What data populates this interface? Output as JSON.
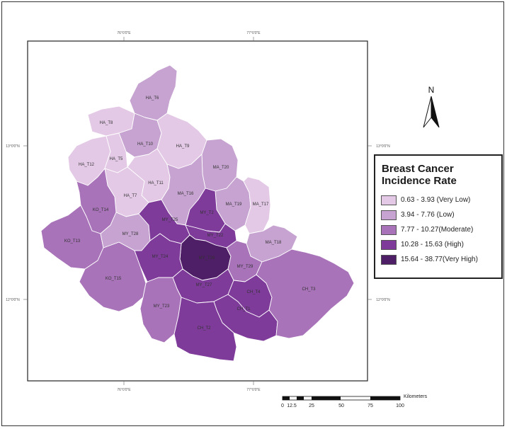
{
  "legend": {
    "title_line1": "Breast Cancer",
    "title_line2": "Incidence Rate",
    "classes": [
      {
        "label": "0.63 - 3.93 (Very Low)",
        "color": "#e3c9e6"
      },
      {
        "label": "3.94 - 7.76 (Low)",
        "color": "#c6a3d0"
      },
      {
        "label": "7.77 - 10.27(Moderate)",
        "color": "#a873b9"
      },
      {
        "label": "10.28 - 15.63 (High)",
        "color": "#7e3b9a"
      },
      {
        "label": "15.64 - 38.77(Very High)",
        "color": "#4e1e66"
      }
    ]
  },
  "north_arrow": {
    "label": "N"
  },
  "scale_bar": {
    "unit": "Kilometers",
    "ticks": [
      "0",
      "12.5",
      "25",
      "50",
      "75",
      "100"
    ]
  },
  "graticule": {
    "top": [
      "76°0'0\"E",
      "77°0'0\"E"
    ],
    "bottom": [
      "76°0'0\"E",
      "77°0'0\"E"
    ],
    "left": [
      "13°0'0\"N",
      "12°0'0\"N"
    ],
    "right": [
      "13°0'0\"N",
      "12°0'0\"N"
    ]
  },
  "map": {
    "regions": [
      {
        "label": "HA_T6",
        "class": 1
      },
      {
        "label": "HA_T8",
        "class": 0
      },
      {
        "label": "HA_T10",
        "class": 1
      },
      {
        "label": "HA_T9",
        "class": 0
      },
      {
        "label": "HA_T12",
        "class": 0
      },
      {
        "label": "HA_T5",
        "class": 0
      },
      {
        "label": "HA_T11",
        "class": 0
      },
      {
        "label": "HA_T7",
        "class": 0
      },
      {
        "label": "MA_T20",
        "class": 1
      },
      {
        "label": "MA_T16",
        "class": 1
      },
      {
        "label": "MA_T19",
        "class": 1
      },
      {
        "label": "MA_T17",
        "class": 0
      },
      {
        "label": "MA_T18",
        "class": 1
      },
      {
        "label": "KO_T14",
        "class": 2
      },
      {
        "label": "KO_T13",
        "class": 2
      },
      {
        "label": "KO_T15",
        "class": 2
      },
      {
        "label": "MY_T28",
        "class": 1
      },
      {
        "label": "MY_T25",
        "class": 3
      },
      {
        "label": "MY_T2",
        "class": 3
      },
      {
        "label": "MY_T22",
        "class": 3
      },
      {
        "label": "MY_T26",
        "class": 4
      },
      {
        "label": "MY_T24",
        "class": 3
      },
      {
        "label": "MY_T29",
        "class": 2
      },
      {
        "label": "MY_T27",
        "class": 3
      },
      {
        "label": "MY_T23",
        "class": 2
      },
      {
        "label": "CH_T4",
        "class": 3
      },
      {
        "label": "CH_T1",
        "class": 3
      },
      {
        "label": "CH_T2",
        "class": 3
      },
      {
        "label": "CH_T3",
        "class": 2
      }
    ]
  }
}
